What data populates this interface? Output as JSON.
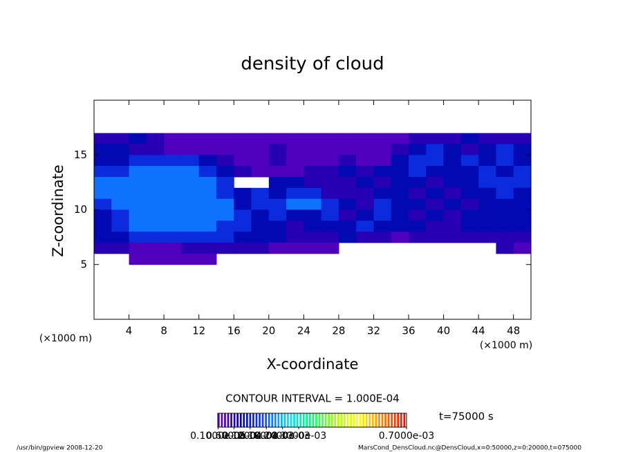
{
  "chart_data": {
    "type": "heatmap",
    "title": "density of cloud",
    "xlabel": "X-coordinate",
    "ylabel": "Z-coordinate",
    "xunit": "(×1000 m)",
    "yunit": "(×1000 m)",
    "contour_note": "CONTOUR INTERVAL = 1.000E-04",
    "time_label": "t=75000 s",
    "footer_left": "/usr/bin/gpview   2008-12-20",
    "footer_right": "MarsCond_DensCloud.nc@DensCloud,x=0:50000,z=0:20000,t=075000",
    "xlim": [
      0,
      50
    ],
    "ylim": [
      0,
      20
    ],
    "xticks": [
      4,
      8,
      12,
      16,
      20,
      24,
      28,
      32,
      36,
      40,
      44,
      48
    ],
    "yticks": [
      5,
      10,
      15
    ],
    "x": [
      1,
      3,
      5,
      7,
      9,
      11,
      13,
      15,
      17,
      19,
      21,
      23,
      25,
      27,
      29,
      31,
      33,
      35,
      37,
      39,
      41,
      43,
      45,
      47,
      49
    ],
    "y": [
      16.5,
      15.5,
      14.5,
      13.5,
      12.5,
      11.5,
      10.5,
      9.5,
      8.5,
      7.5,
      6.5,
      5.5
    ],
    "z": [
      [
        6e-05,
        6e-05,
        0.0001,
        6e-05,
        3e-05,
        3e-05,
        3e-05,
        3e-05,
        3e-05,
        3e-05,
        3e-05,
        3e-05,
        3e-05,
        3e-05,
        3e-05,
        3e-05,
        3e-05,
        3e-05,
        6e-05,
        6e-05,
        6e-05,
        0.0001,
        6e-05,
        6e-05,
        6e-05
      ],
      [
        0.0001,
        0.0001,
        6e-05,
        6e-05,
        3e-05,
        3e-05,
        3e-05,
        3e-05,
        3e-05,
        3e-05,
        6e-05,
        3e-05,
        3e-05,
        3e-05,
        3e-05,
        3e-05,
        3e-05,
        6e-05,
        0.0001,
        0.00014,
        0.0001,
        6e-05,
        0.0001,
        0.00014,
        0.0001
      ],
      [
        0.0001,
        0.0001,
        0.00014,
        0.00014,
        0.00014,
        0.00014,
        0.0001,
        6e-05,
        3e-05,
        3e-05,
        6e-05,
        3e-05,
        3e-05,
        3e-05,
        6e-05,
        3e-05,
        3e-05,
        0.0001,
        0.00014,
        0.00014,
        0.0001,
        0.00014,
        0.0001,
        0.00014,
        0.0001
      ],
      [
        0.00014,
        0.00014,
        0.0002,
        0.0002,
        0.0002,
        0.0002,
        0.00014,
        0.0001,
        6e-05,
        3e-05,
        3e-05,
        3e-05,
        6e-05,
        6e-05,
        0.0001,
        6e-05,
        0.0001,
        0.0001,
        0.00014,
        0.0001,
        0.0001,
        0.0001,
        0.00014,
        0.0001,
        0.00014
      ],
      [
        0.0002,
        0.0002,
        0.0002,
        0.0002,
        0.0002,
        0.0002,
        0.0002,
        0.00014,
        null,
        null,
        0.0001,
        0.0001,
        6e-05,
        6e-05,
        6e-05,
        0.0001,
        6e-05,
        0.0001,
        0.0001,
        6e-05,
        0.0001,
        0.0001,
        0.00014,
        0.00014,
        0.00014
      ],
      [
        0.0002,
        0.0002,
        0.0002,
        0.0002,
        0.0002,
        0.0002,
        0.0002,
        0.00014,
        0.0001,
        0.00014,
        0.0001,
        0.00014,
        0.00014,
        6e-05,
        6e-05,
        6e-05,
        0.0001,
        0.0001,
        6e-05,
        0.0001,
        6e-05,
        0.0001,
        0.0001,
        0.00014,
        0.0001
      ],
      [
        0.00014,
        0.0002,
        0.0002,
        0.0002,
        0.0002,
        0.0002,
        0.0002,
        0.0002,
        0.0001,
        0.00014,
        0.00014,
        0.0002,
        0.0002,
        0.00014,
        0.0001,
        6e-05,
        0.00014,
        0.0001,
        0.0001,
        6e-05,
        0.0001,
        6e-05,
        0.0001,
        0.0001,
        0.0001
      ],
      [
        0.0001,
        0.00014,
        0.0002,
        0.0002,
        0.0002,
        0.0002,
        0.0002,
        0.0002,
        0.00014,
        0.0001,
        0.00014,
        0.0001,
        0.0001,
        0.00014,
        6e-05,
        0.0001,
        0.00014,
        0.0001,
        6e-05,
        0.0001,
        6e-05,
        0.0001,
        0.0001,
        0.0001,
        0.0001
      ],
      [
        0.0001,
        0.00014,
        0.0002,
        0.0002,
        0.0002,
        0.0002,
        0.0002,
        0.00014,
        0.00014,
        0.0001,
        0.0001,
        6e-05,
        0.0001,
        0.0001,
        0.0001,
        0.00014,
        0.0001,
        0.0001,
        0.0001,
        6e-05,
        6e-05,
        0.0001,
        0.0001,
        0.0001,
        0.0001
      ],
      [
        0.0001,
        0.0001,
        0.00014,
        0.00014,
        0.00014,
        0.00014,
        0.00014,
        0.00014,
        0.0001,
        0.0001,
        0.0001,
        6e-05,
        6e-05,
        6e-05,
        0.0001,
        6e-05,
        6e-05,
        3e-05,
        6e-05,
        6e-05,
        6e-05,
        6e-05,
        6e-05,
        6e-05,
        6e-05
      ],
      [
        6e-05,
        6e-05,
        3e-05,
        3e-05,
        3e-05,
        6e-05,
        6e-05,
        6e-05,
        6e-05,
        6e-05,
        3e-05,
        3e-05,
        3e-05,
        3e-05,
        null,
        null,
        null,
        null,
        null,
        null,
        null,
        null,
        null,
        6e-05,
        3e-05
      ],
      [
        null,
        null,
        3e-05,
        3e-05,
        3e-05,
        3e-05,
        3e-05,
        null,
        null,
        null,
        null,
        null,
        null,
        null,
        null,
        null,
        null,
        null,
        null,
        null,
        null,
        null,
        null,
        null,
        null
      ]
    ],
    "zlim": [
      0,
      0.0007
    ],
    "colorscale": [
      "#7a00c8",
      "#0000a8",
      "#1448ff",
      "#00dcff",
      "#00ff7a",
      "#a8ff00",
      "#ffff00",
      "#ff8000",
      "#ff0000"
    ],
    "cbarticks": [
      {
        "value": 1e-06,
        "label": "0.1000e-05"
      },
      {
        "value": 6e-05,
        "label": "0.6000e-04"
      },
      {
        "value": 0.00012,
        "label": "0.1200e-03"
      },
      {
        "value": 0.00018,
        "label": "0.1800e-03"
      },
      {
        "value": 0.00024,
        "label": "0.2400e-03"
      },
      {
        "value": 0.0003,
        "label": "0.3000e-03"
      },
      {
        "value": 0.0007,
        "label": "0.7000e-03"
      }
    ]
  }
}
